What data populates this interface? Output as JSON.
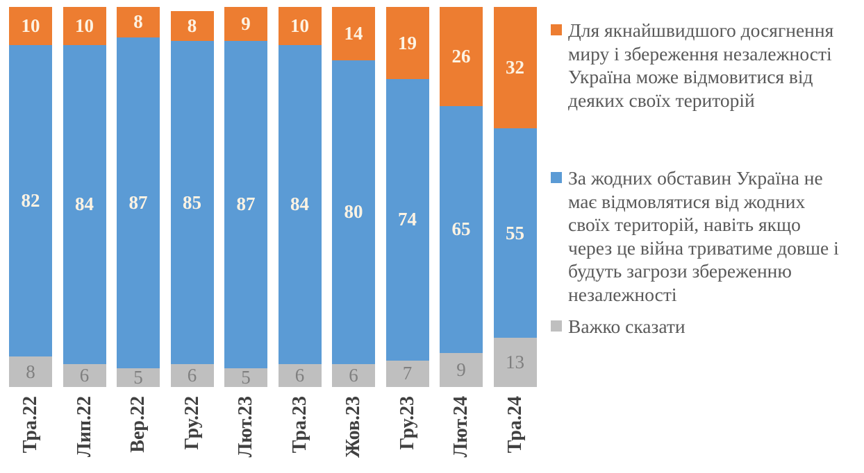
{
  "chart_data": {
    "type": "bar",
    "subtype": "stacked-column",
    "title": "",
    "xlabel": "",
    "ylabel": "",
    "ylim": [
      0,
      100
    ],
    "grid": false,
    "legend_position": "right",
    "categories": [
      "Тра.22",
      "Лип.22",
      "Вер.22",
      "Гру.22",
      "Лют.23",
      "Тра.23",
      "Жов.23",
      "Гру.23",
      "Лют.24",
      "Тра.24"
    ],
    "series": [
      {
        "name": "Для якнайшвидшого досягнення миру і збереження незалежності Україна може відмовитися від деяких своїх територій",
        "color": "#ED7D31",
        "label_color": "#FDF3E3",
        "label_weight": "bold",
        "values": [
          10,
          10,
          8,
          8,
          9,
          10,
          14,
          19,
          26,
          32
        ]
      },
      {
        "name": "За жодних обставин Україна не має відмовлятися від жодних своїх територій, навіть якщо через це війна триватиме довше і будуть загрози збереженню незалежності",
        "color": "#5B9BD5",
        "label_color": "#FDF3E3",
        "label_weight": "bold",
        "values": [
          82,
          84,
          87,
          85,
          87,
          84,
          80,
          74,
          65,
          55
        ]
      },
      {
        "name": "Важко сказати",
        "color": "#BFBFBF",
        "label_color": "#7F7F7F",
        "label_weight": "normal",
        "values": [
          8,
          6,
          5,
          6,
          5,
          6,
          6,
          7,
          9,
          13
        ]
      }
    ]
  },
  "legend": {
    "items": [
      {
        "swatch_name": "legend-swatch-orange",
        "color": "#ED7D31",
        "lines": [
          "Для якнайшвидшого досягнення",
          "миру і збереження незалежності",
          "Україна може відмовитися від",
          "деяких своїх територій"
        ]
      },
      {
        "swatch_name": "legend-swatch-blue",
        "color": "#5B9BD5",
        "lines": [
          "За жодних обставин Україна не",
          "має відмовлятися від жодних",
          "своїх територій, навіть якщо",
          "через це війна триватиме довше і",
          "будуть загрози збереженню",
          "незалежності"
        ]
      },
      {
        "swatch_name": "legend-swatch-gray",
        "color": "#BFBFBF",
        "lines": [
          "Важко сказати"
        ]
      }
    ]
  },
  "colors": {
    "background": "#FFFFFF",
    "orange": "#ED7D31",
    "blue": "#5B9BD5",
    "gray": "#BFBFBF",
    "bar_value_label": "#FDF3E3",
    "gray_value_label": "#7F7F7F",
    "axis_label": "#404040",
    "legend_text": "#595959"
  }
}
